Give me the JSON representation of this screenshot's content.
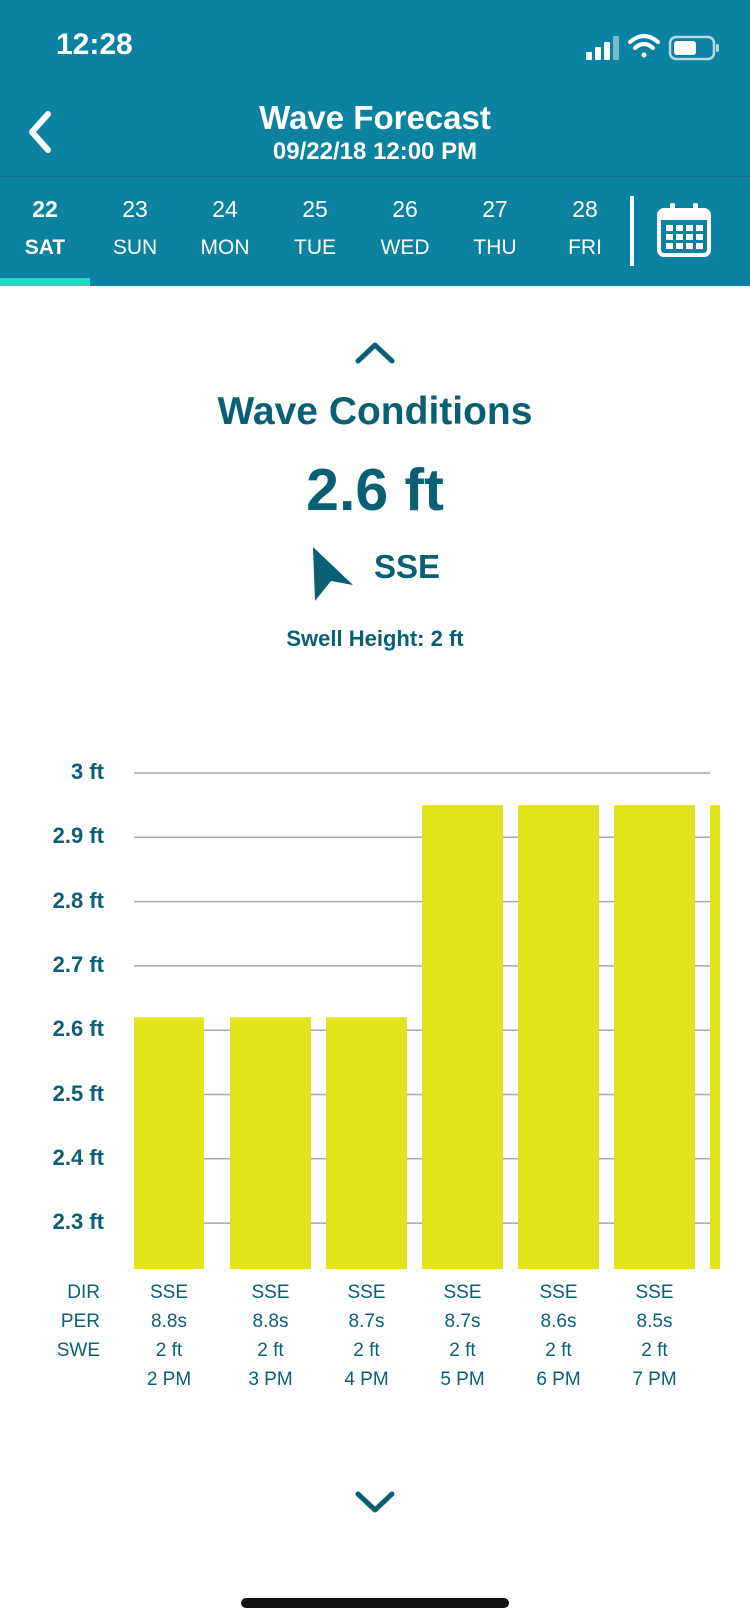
{
  "status": {
    "time": "12:28"
  },
  "header": {
    "title": "Wave Forecast",
    "subtitle": "09/22/18 12:00 PM"
  },
  "days": [
    {
      "num": "22",
      "name": "SAT",
      "active": true
    },
    {
      "num": "23",
      "name": "SUN"
    },
    {
      "num": "24",
      "name": "MON"
    },
    {
      "num": "25",
      "name": "TUE"
    },
    {
      "num": "26",
      "name": "WED"
    },
    {
      "num": "27",
      "name": "THU"
    },
    {
      "num": "28",
      "name": "FRI"
    }
  ],
  "conditions": {
    "title": "Wave Conditions",
    "height": "2.6 ft",
    "direction": "SSE",
    "swell": "Swell Height: 2 ft"
  },
  "row_labels": {
    "dir": "DIR",
    "per": "PER",
    "swe": "SWE"
  },
  "colors": {
    "header_bg": "#0a82a0",
    "accent": "#2ad3c6",
    "text": "#0b5f75",
    "bar": "#e3e31c",
    "grid": "#a8a8a8"
  },
  "chart_data": {
    "type": "bar",
    "ylim": [
      2.23,
      3
    ],
    "yticks": [
      "3 ft",
      "2.9 ft",
      "2.8 ft",
      "2.7 ft",
      "2.6 ft",
      "2.5 ft",
      "2.4 ft",
      "2.3 ft"
    ],
    "ytick_values": [
      3.0,
      2.9,
      2.8,
      2.7,
      2.6,
      2.5,
      2.4,
      2.3
    ],
    "categories": [
      "2 PM",
      "3 PM",
      "4 PM",
      "5 PM",
      "6 PM",
      "7 PM"
    ],
    "values": [
      2.62,
      2.62,
      2.62,
      2.95,
      2.95,
      2.95
    ],
    "partial_next_value": 2.95,
    "dir": [
      "SSE",
      "SSE",
      "SSE",
      "SSE",
      "SSE",
      "SSE"
    ],
    "per": [
      "8.8s",
      "8.8s",
      "8.7s",
      "8.7s",
      "8.6s",
      "8.5s"
    ],
    "swe": [
      "2 ft",
      "2 ft",
      "2 ft",
      "2 ft",
      "2 ft",
      "2 ft"
    ]
  }
}
